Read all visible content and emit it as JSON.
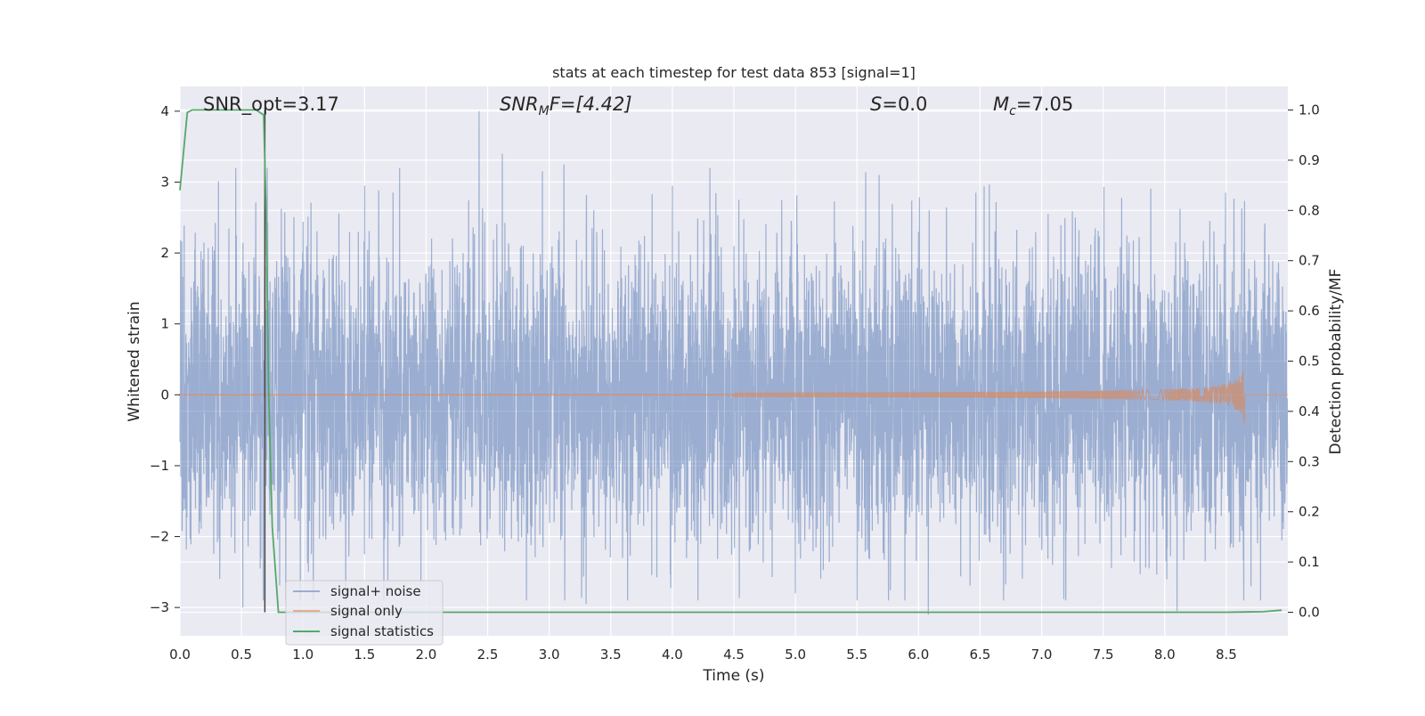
{
  "chart_data": {
    "type": "line",
    "title": "stats at each timestep for test data 853 [signal=1]",
    "xlabel": "Time (s)",
    "ylabel_left": "Whitened strain",
    "ylabel_right": "Detection probability/MF",
    "xlim": [
      0,
      9.0
    ],
    "ylim_left": [
      -3.4,
      4.35
    ],
    "ylim_right": [
      -0.047,
      1.047
    ],
    "x_ticks": [
      "0.0",
      "0.5",
      "1.0",
      "1.5",
      "2.0",
      "2.5",
      "3.0",
      "3.5",
      "4.0",
      "4.5",
      "5.0",
      "5.5",
      "6.0",
      "6.5",
      "7.0",
      "7.5",
      "8.0",
      "8.5"
    ],
    "y_ticks_left": [
      "4",
      "3",
      "2",
      "1",
      "0",
      "−1",
      "−2",
      "−3"
    ],
    "y_ticks_right": [
      "1.0",
      "0.9",
      "0.8",
      "0.7",
      "0.6",
      "0.5",
      "0.4",
      "0.3",
      "0.2",
      "0.1",
      "0.0"
    ],
    "grid": true,
    "legend_position": "lower-left",
    "annotations": {
      "snr_opt": "SNR_opt=3.17",
      "snr_mf_sym": "SNR",
      "snr_mf_sub": "M",
      "snr_mf_tail": "F=[4.42]",
      "s_sym": "S",
      "s_tail": "=0.0",
      "mc_sym": "M",
      "mc_sub": "c",
      "mc_tail": "=7.05"
    },
    "vline_x": 0.69,
    "series": [
      {
        "name": "signal+ noise",
        "color": "#4c72b0",
        "kind": "noise",
        "axis": "left",
        "typical_std": 1.05,
        "max_positive": 4.0,
        "min_negative": -3.1,
        "peaks": [
          [
            2.43,
            4.0
          ],
          [
            2.62,
            3.4
          ],
          [
            3.12,
            3.25
          ],
          [
            0.71,
            3.2
          ],
          [
            5.68,
            3.1
          ],
          [
            6.0,
            2.3
          ],
          [
            1.5,
            2.95
          ],
          [
            4.0,
            2.95
          ],
          [
            6.08,
            -3.1
          ],
          [
            8.1,
            -3.05
          ],
          [
            0.51,
            -3.0
          ],
          [
            0.86,
            -2.9
          ],
          [
            8.7,
            -2.7
          ],
          [
            5.0,
            -2.8
          ],
          [
            3.3,
            -2.95
          ]
        ]
      },
      {
        "name": "signal only",
        "color": "#dd8452",
        "kind": "chirp",
        "axis": "left",
        "merger_time": 8.65,
        "peak_amplitude": 0.45,
        "visible_from": 4.5
      },
      {
        "name": "signal statistics",
        "color": "#55a868",
        "kind": "line",
        "axis": "right",
        "x": [
          0.0,
          0.06,
          0.1,
          0.15,
          0.3,
          0.5,
          0.62,
          0.68,
          0.7,
          0.72,
          0.75,
          0.8,
          0.9,
          1.5,
          3.0,
          6.0,
          8.5,
          8.8,
          8.95
        ],
        "y": [
          0.84,
          0.995,
          1.0,
          1.0,
          1.0,
          1.0,
          1.0,
          0.99,
          0.8,
          0.45,
          0.17,
          0.0,
          0.0,
          0.0,
          0.0,
          0.0,
          0.0,
          0.001,
          0.004
        ]
      }
    ]
  }
}
